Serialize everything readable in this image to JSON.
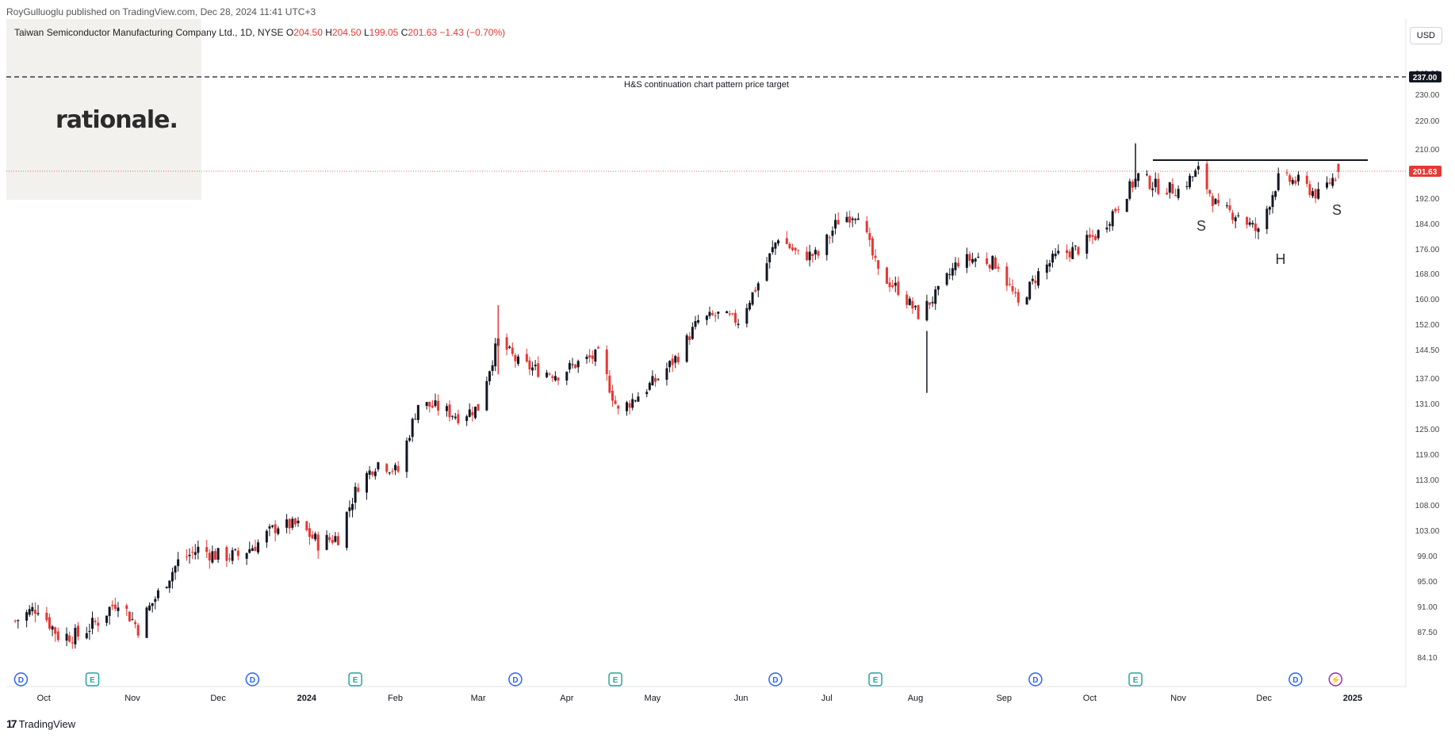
{
  "header": {
    "publisher": "RoyGulluoglu published on TradingView.com, Dec 28, 2024 11:41 UTC+3"
  },
  "legend": {
    "symbol": "Taiwan Semiconductor Manufacturing Company Ltd., 1D, NYSE",
    "o_label": "O",
    "o": "204.50",
    "h_label": "H",
    "h": "204.50",
    "l_label": "L",
    "l": "199.05",
    "c_label": "C",
    "c": "201.63",
    "change": "−1.43 (−0.70%)"
  },
  "logo_text": "rationale.",
  "currency_button": "USD",
  "footer_brand": "TradingView",
  "colors": {
    "up": "#131722",
    "down": "#e53935",
    "last_price": "#e53935"
  },
  "chart_data": {
    "type": "candlestick",
    "title": "",
    "y_axis_ticks": [
      "240.00",
      "230.00",
      "220.00",
      "210.00",
      "192.00",
      "184.00",
      "176.00",
      "168.00",
      "160.00",
      "152.00",
      "144.50",
      "137.00",
      "131.00",
      "125.00",
      "119.00",
      "113.00",
      "108.00",
      "103.00",
      "99.00",
      "95.00",
      "91.00",
      "87.50",
      "84.10"
    ],
    "x_axis_ticks": [
      "Oct",
      "Nov",
      "Dec",
      "2024",
      "Feb",
      "Mar",
      "Apr",
      "May",
      "Jun",
      "Jul",
      "Aug",
      "Sep",
      "Oct",
      "Nov",
      "Dec",
      "2025"
    ],
    "last_price": "201.63",
    "target_price": "237.00",
    "neckline_price": 205,
    "annotations": {
      "target_label": "H&S continuation chart pattern price target",
      "left_shoulder": "S",
      "head": "H",
      "right_shoulder": "S"
    },
    "event_markers": [
      "D",
      "E",
      "D",
      "E",
      "D",
      "E",
      "D",
      "E",
      "D",
      "E",
      "D",
      "⚡"
    ],
    "anchors": [
      [
        "2023-09-21",
        89
      ],
      [
        "2023-09-29",
        91
      ],
      [
        "2023-10-06",
        87
      ],
      [
        "2023-10-13",
        87
      ],
      [
        "2023-10-20",
        89
      ],
      [
        "2023-10-27",
        92
      ],
      [
        "2023-11-03",
        88
      ],
      [
        "2023-11-10",
        93
      ],
      [
        "2023-11-17",
        98
      ],
      [
        "2023-11-24",
        100
      ],
      [
        "2023-12-01",
        99
      ],
      [
        "2023-12-08",
        99
      ],
      [
        "2023-12-15",
        101
      ],
      [
        "2023-12-22",
        104
      ],
      [
        "2023-12-29",
        104
      ],
      [
        "2024-01-05",
        101
      ],
      [
        "2024-01-12",
        102
      ],
      [
        "2024-01-19",
        112
      ],
      [
        "2024-01-26",
        117
      ],
      [
        "2024-02-02",
        115
      ],
      [
        "2024-02-09",
        131
      ],
      [
        "2024-02-16",
        130
      ],
      [
        "2024-02-23",
        128
      ],
      [
        "2024-03-01",
        130
      ],
      [
        "2024-03-08",
        147
      ],
      [
        "2024-03-15",
        141
      ],
      [
        "2024-03-22",
        139
      ],
      [
        "2024-03-29",
        138
      ],
      [
        "2024-04-05",
        141
      ],
      [
        "2024-04-12",
        143
      ],
      [
        "2024-04-19",
        129
      ],
      [
        "2024-04-26",
        133
      ],
      [
        "2024-05-03",
        137
      ],
      [
        "2024-05-10",
        143
      ],
      [
        "2024-05-17",
        153
      ],
      [
        "2024-05-24",
        155
      ],
      [
        "2024-05-31",
        153
      ],
      [
        "2024-06-07",
        165
      ],
      [
        "2024-06-14",
        180
      ],
      [
        "2024-06-21",
        174
      ],
      [
        "2024-06-28",
        174
      ],
      [
        "2024-07-05",
        185
      ],
      [
        "2024-07-12",
        188
      ],
      [
        "2024-07-19",
        168
      ],
      [
        "2024-07-26",
        163
      ],
      [
        "2024-08-02",
        155
      ],
      [
        "2024-08-09",
        162
      ],
      [
        "2024-08-16",
        172
      ],
      [
        "2024-08-23",
        173
      ],
      [
        "2024-08-30",
        171
      ],
      [
        "2024-09-06",
        158
      ],
      [
        "2024-09-13",
        168
      ],
      [
        "2024-09-20",
        174
      ],
      [
        "2024-09-27",
        176
      ],
      [
        "2024-10-04",
        181
      ],
      [
        "2024-10-11",
        190
      ],
      [
        "2024-10-18",
        200
      ],
      [
        "2024-10-25",
        196
      ],
      [
        "2024-11-01",
        195
      ],
      [
        "2024-11-08",
        202
      ],
      [
        "2024-11-15",
        188
      ],
      [
        "2024-11-22",
        187
      ],
      [
        "2024-11-29",
        181
      ],
      [
        "2024-12-06",
        199
      ],
      [
        "2024-12-13",
        198
      ],
      [
        "2024-12-20",
        193
      ],
      [
        "2024-12-27",
        201.63
      ]
    ],
    "xlim": [
      "2023-09-19",
      "2025-01-16"
    ]
  }
}
